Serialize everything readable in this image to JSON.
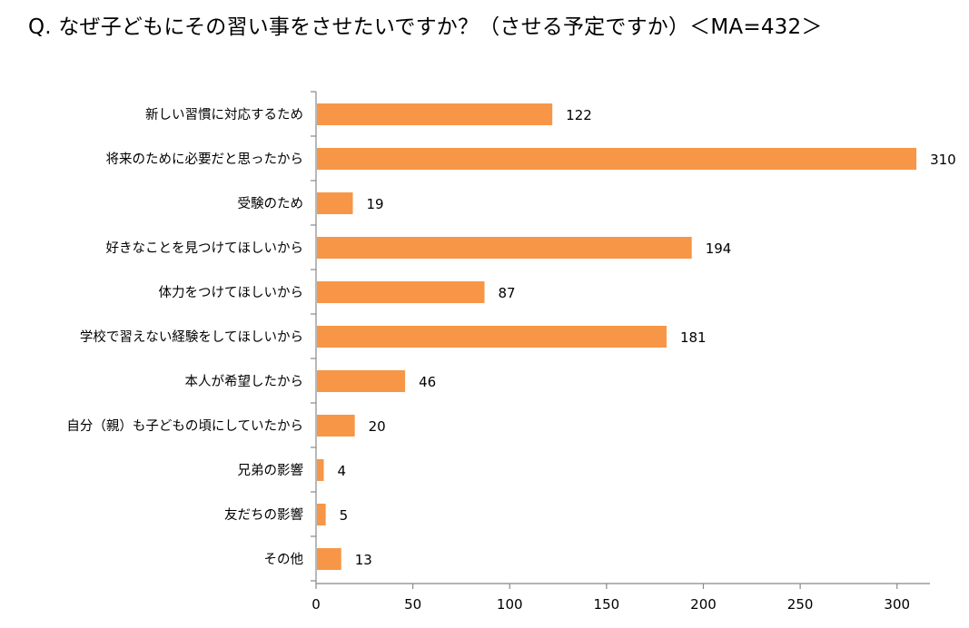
{
  "chart_data": {
    "type": "bar",
    "orientation": "horizontal",
    "title": "Q. なぜ子どもにその習い事をさせたいですか？（させる予定ですか）＜MA=432＞",
    "categories": [
      "新しい習慣に対応するため",
      "将来のために必要だと思ったから",
      "受験のため",
      "好きなことを見つけてほしいから",
      "体力をつけてほしいから",
      "学校で習えない経験をしてほしいから",
      "本人が希望したから",
      "自分（親）も子どもの頃にしていたから",
      "兄弟の影響",
      "友だちの影響",
      "その他"
    ],
    "values": [
      122,
      310,
      19,
      194,
      87,
      181,
      46,
      20,
      4,
      5,
      13
    ],
    "xlim": [
      0,
      317
    ],
    "xticks": [
      0,
      50,
      100,
      150,
      200,
      250,
      300
    ],
    "xlabel": "",
    "ylabel": "",
    "grid": false,
    "bar_color": "#F79646",
    "axis_color": "#888888"
  }
}
